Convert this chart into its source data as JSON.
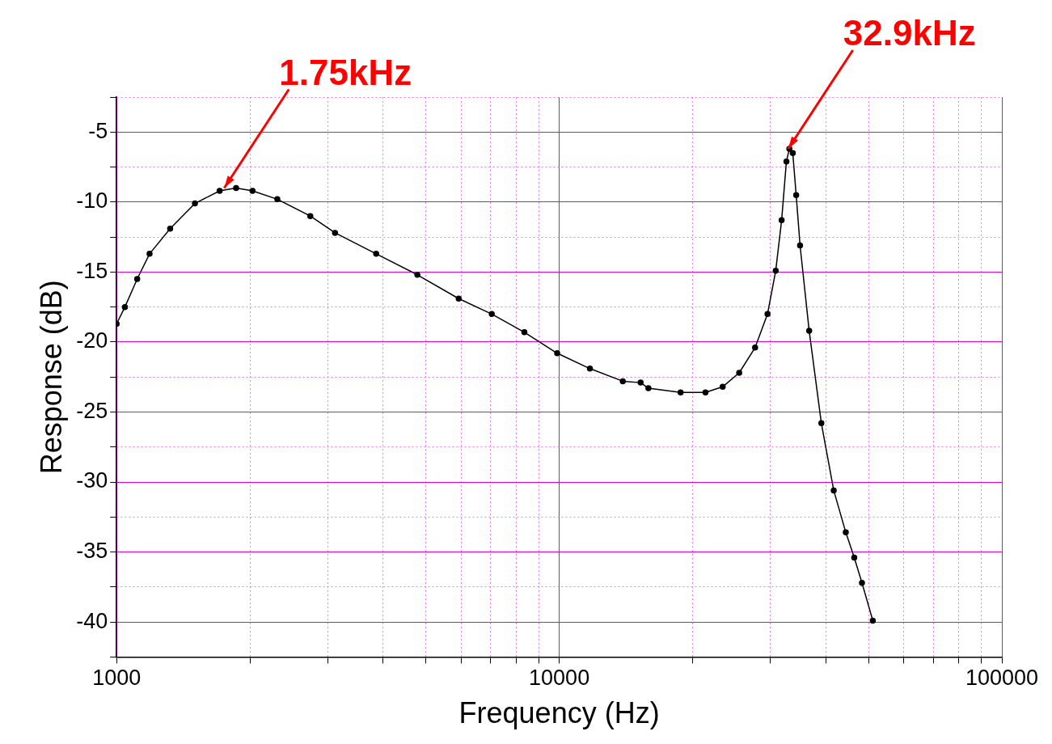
{
  "chart_data": {
    "type": "line",
    "xlabel": "Frequency (Hz)",
    "ylabel": "Response (dB)",
    "log": "x",
    "grid": true,
    "marker": "circle",
    "legend": false,
    "x": [
      1000,
      1044,
      1113,
      1187,
      1321,
      1503,
      1709,
      1862,
      2028,
      2307,
      2739,
      3115,
      3858,
      4780,
      5927,
      7040,
      8341,
      9893,
      11730,
      13920,
      15270,
      15900,
      18800,
      21400,
      23400,
      25500,
      27700,
      29550,
      30840,
      31800,
      32600,
      33100,
      33700,
      34300,
      35000,
      36700,
      39100,
      41700,
      44400,
      46400,
      48300,
      51100
    ],
    "series": [
      {
        "color": "#000000",
        "values": [
          -18.7,
          -17.5,
          -15.5,
          -13.7,
          -11.9,
          -10.1,
          -9.2,
          -9.0,
          -9.2,
          -9.8,
          -11.0,
          -12.2,
          -13.7,
          -15.2,
          -16.9,
          -18.0,
          -19.3,
          -20.8,
          -21.9,
          -22.8,
          -22.9,
          -23.3,
          -23.6,
          -23.6,
          -23.2,
          -22.2,
          -20.4,
          -18.0,
          -14.9,
          -11.3,
          -7.1,
          -6.2,
          -6.5,
          -9.5,
          -13.1,
          -19.2,
          -25.8,
          -30.6,
          -33.6,
          -35.4,
          -37.2,
          -39.9
        ]
      }
    ],
    "xlim": [
      1000,
      100000
    ],
    "xticks": [
      1000,
      {
        "value": 2000,
        "label": null
      },
      {
        "value": 3000,
        "label": null
      },
      {
        "value": 4000,
        "label": null
      },
      {
        "value": 5000,
        "label": null
      },
      {
        "value": 6000,
        "label": null
      },
      {
        "value": 7000,
        "label": null
      },
      {
        "value": 8000,
        "label": null
      },
      {
        "value": 9000,
        "label": null
      },
      10000,
      {
        "value": 20000,
        "label": null
      },
      {
        "value": 30000,
        "label": null
      },
      {
        "value": 40000,
        "label": null
      },
      {
        "value": 50000,
        "label": null
      },
      {
        "value": 60000,
        "label": null
      },
      {
        "value": 70000,
        "label": null
      },
      {
        "value": 80000,
        "label": null
      },
      {
        "value": 90000,
        "label": null
      },
      100000
    ],
    "ylim": [
      -42.5,
      -2.5
    ],
    "yticks": [
      {
        "value": -42.5,
        "label": null
      },
      -40,
      {
        "value": -37.5,
        "label": null
      },
      -35,
      {
        "value": -32.5,
        "label": null
      },
      -30,
      {
        "value": -27.5,
        "label": null
      },
      -25,
      {
        "value": -22.5,
        "label": null
      },
      -20,
      {
        "value": -17.5,
        "label": null
      },
      -15,
      {
        "value": -12.5,
        "label": null
      },
      -10,
      {
        "value": -7.5,
        "label": null
      },
      -5,
      {
        "value": -2.5,
        "label": null
      }
    ],
    "annotations": [
      {
        "text": "1.75kHz",
        "x": 1750,
        "y": -9
      },
      {
        "text": "32.9kHz",
        "x": 32900,
        "y": -6.2
      }
    ]
  }
}
